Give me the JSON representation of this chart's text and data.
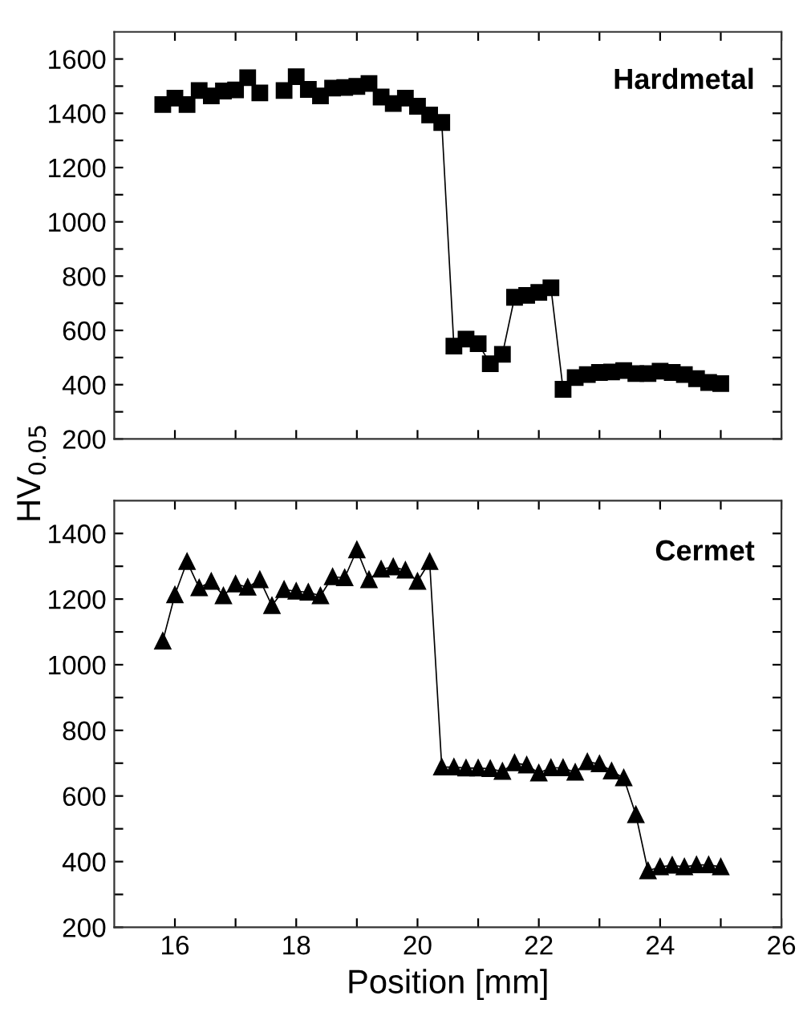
{
  "chart_data": [
    {
      "type": "line",
      "ylabel": "HV$_{0.05}$",
      "annotations": [
        "Hardmetal"
      ],
      "marker": "square",
      "line_style": "solid",
      "tick_labels": "y",
      "grid": false,
      "legend": false,
      "x": [
        15.8,
        16.0,
        16.2,
        16.4,
        16.6,
        16.8,
        17.0,
        17.2,
        17.4,
        17.6,
        17.8,
        18.0,
        18.2,
        18.4,
        18.6,
        18.8,
        19.0,
        19.2,
        19.4,
        19.6,
        19.8,
        20.0,
        20.2,
        20.4,
        20.6,
        20.8,
        21.0,
        21.2,
        21.4,
        21.6,
        21.8,
        22.0,
        22.2,
        22.4,
        22.6,
        22.8,
        23.0,
        23.2,
        23.4,
        23.6,
        23.8,
        24.0,
        24.2,
        24.4,
        24.6,
        24.8,
        25.0
      ],
      "series": [
        {
          "color": "#000000",
          "values": [
            1432,
            1456,
            1432,
            1484,
            1464,
            1482,
            1486,
            1531,
            1475,
            null,
            1484,
            1535,
            1488,
            1464,
            1493,
            1495,
            1499,
            1510,
            1460,
            1436,
            1456,
            1426,
            1394,
            1366,
            542,
            568,
            551,
            477,
            512,
            722,
            729,
            740,
            757,
            383,
            426,
            437,
            445,
            447,
            452,
            441,
            441,
            450,
            445,
            437,
            422,
            408,
            404
          ]
        }
      ],
      "xlim": [
        15,
        26
      ],
      "xticks": [
        16,
        {
          "value": 17,
          "label": null
        },
        18,
        {
          "value": 19,
          "label": null
        },
        20,
        {
          "value": 21,
          "label": null
        },
        22,
        {
          "value": 23,
          "label": null
        },
        24,
        {
          "value": 25,
          "label": null
        },
        26
      ],
      "ylim": [
        200,
        1700
      ],
      "yticks": [
        200,
        {
          "value": 300,
          "label": null
        },
        400,
        {
          "value": 500,
          "label": null
        },
        600,
        {
          "value": 700,
          "label": null
        },
        800,
        {
          "value": 900,
          "label": null
        },
        1000,
        {
          "value": 1100,
          "label": null
        },
        1200,
        {
          "value": 1300,
          "label": null
        },
        1400,
        {
          "value": 1500,
          "label": null
        },
        1600
      ]
    },
    {
      "type": "line",
      "xlabel": "Position [mm]",
      "annotations": [
        "Cermet"
      ],
      "marker": "triangle",
      "line_style": "solid",
      "grid": false,
      "legend": false,
      "x": [
        15.8,
        16.0,
        16.2,
        16.4,
        16.6,
        16.8,
        17.0,
        17.2,
        17.4,
        17.6,
        17.8,
        18.0,
        18.2,
        18.4,
        18.6,
        18.8,
        19.0,
        19.2,
        19.4,
        19.6,
        19.8,
        20.0,
        20.2,
        20.4,
        20.6,
        20.8,
        21.0,
        21.2,
        21.4,
        21.6,
        21.8,
        22.0,
        22.2,
        22.4,
        22.6,
        22.8,
        23.0,
        23.2,
        23.4,
        23.6,
        23.8,
        24.0,
        24.2,
        24.4,
        24.6,
        24.8,
        25.0
      ],
      "series": [
        {
          "color": "#000000",
          "values": [
            1072,
            1213,
            1314,
            1234,
            1254,
            1210,
            1246,
            1236,
            1259,
            1180,
            1229,
            1224,
            1221,
            1210,
            1268,
            1265,
            1350,
            1259,
            1291,
            1298,
            1288,
            1254,
            1314,
            688,
            688,
            685,
            685,
            683,
            675,
            701,
            694,
            670,
            686,
            686,
            672,
            704,
            698,
            676,
            655,
            543,
            372,
            384,
            389,
            384,
            390,
            390,
            384
          ]
        }
      ],
      "xlim": [
        15,
        26
      ],
      "xticks": [
        16,
        {
          "value": 17,
          "label": null
        },
        18,
        {
          "value": 19,
          "label": null
        },
        20,
        {
          "value": 21,
          "label": null
        },
        22,
        {
          "value": 23,
          "label": null
        },
        24,
        {
          "value": 25,
          "label": null
        },
        26
      ],
      "ylim": [
        200,
        1500
      ],
      "yticks": [
        200,
        {
          "value": 300,
          "label": null
        },
        400,
        {
          "value": 500,
          "label": null
        },
        600,
        {
          "value": 700,
          "label": null
        },
        800,
        {
          "value": 900,
          "label": null
        },
        1000,
        {
          "value": 1100,
          "label": null
        },
        1200,
        {
          "value": 1300,
          "label": null
        },
        1400
      ]
    }
  ]
}
